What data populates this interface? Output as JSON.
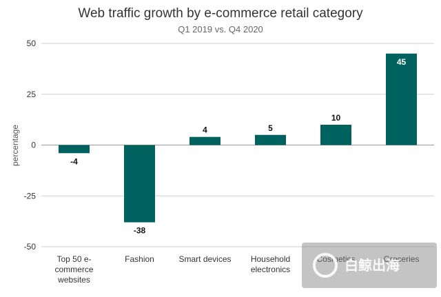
{
  "chart_data": {
    "type": "bar",
    "title": "Web traffic growth by e-commerce retail category",
    "subtitle": "Q1 2019 vs. Q4 2020",
    "xlabel": "",
    "ylabel": "percentage",
    "ylim": [
      -50,
      50
    ],
    "yticks": [
      50,
      25,
      0,
      -25,
      -50
    ],
    "grid": true,
    "categories": [
      [
        "Top 50 e-",
        "commerce",
        "websites"
      ],
      [
        "Fashion"
      ],
      [
        "Smart devices"
      ],
      [
        "Household",
        "electronics"
      ],
      [
        "Cosmetics"
      ],
      [
        "Groceries"
      ]
    ],
    "values": [
      -4,
      -38,
      4,
      5,
      10,
      45
    ],
    "bar_color": "#00625e"
  },
  "watermark": {
    "text": "白鲸出海"
  }
}
